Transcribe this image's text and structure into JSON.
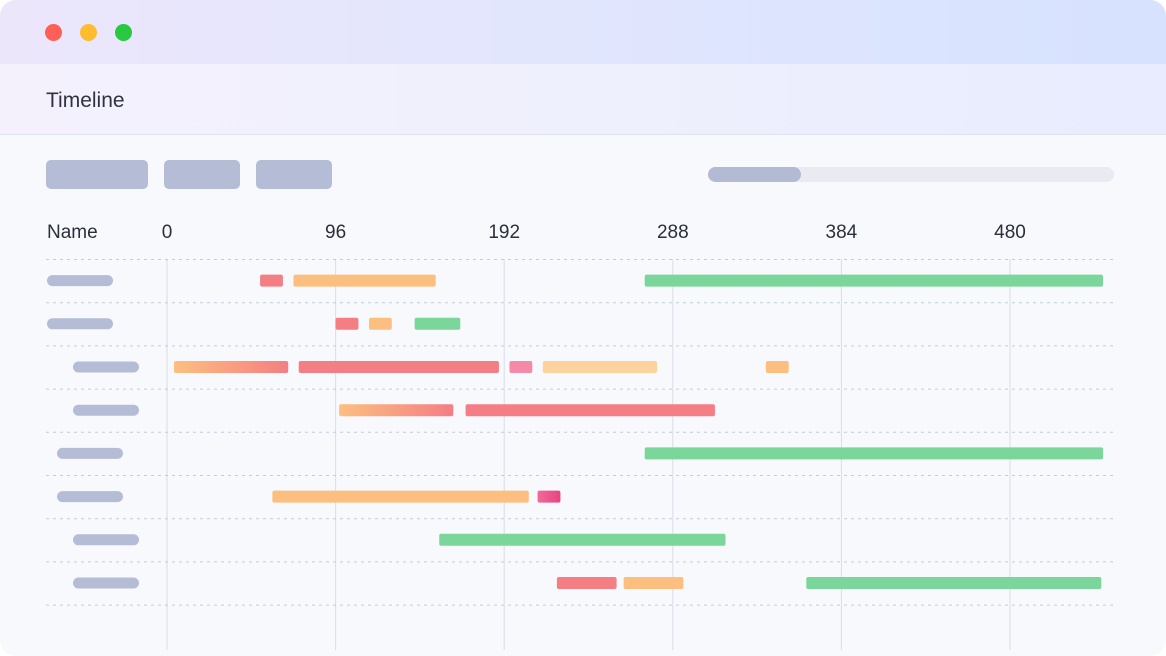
{
  "window": {
    "title": "Timeline",
    "colors": {
      "close": "#fe5f57",
      "minimize": "#febc2e",
      "maximize": "#28c840"
    }
  },
  "toolbar": {
    "buttons": [
      {
        "name": "toolbar-button-1"
      },
      {
        "name": "toolbar-button-2"
      },
      {
        "name": "toolbar-button-3"
      }
    ],
    "progress": 0.23
  },
  "timeline": {
    "name_header": "Name",
    "ticks": [
      0,
      96,
      192,
      288,
      384,
      480
    ],
    "tick_labels": [
      "0",
      "96",
      "192",
      "288",
      "384",
      "480"
    ],
    "x_range": [
      0,
      528
    ],
    "colors": {
      "red": "#f47e84",
      "orange": "#fdbf7f",
      "green": "#7ad69a",
      "peach": "#fcd39c",
      "pink": "#f58aa8",
      "magenta": "#ec4e8a"
    },
    "rows": [
      {
        "indent": 0,
        "bars": [
          {
            "start": 53,
            "end": 66,
            "color": "red"
          },
          {
            "start": 72,
            "end": 153,
            "color": "orange"
          },
          {
            "start": 272,
            "end": 533,
            "color": "green"
          }
        ]
      },
      {
        "indent": 0,
        "bars": [
          {
            "start": 96,
            "end": 109,
            "color": "red"
          },
          {
            "start": 115,
            "end": 128,
            "color": "orange"
          },
          {
            "start": 141,
            "end": 167,
            "color": "green"
          }
        ]
      },
      {
        "indent": 2,
        "bars": [
          {
            "start": 4,
            "end": 69,
            "color": "orange-red"
          },
          {
            "start": 75,
            "end": 189,
            "color": "red"
          },
          {
            "start": 195,
            "end": 208,
            "color": "pink"
          },
          {
            "start": 214,
            "end": 279,
            "color": "peach"
          },
          {
            "start": 341,
            "end": 354,
            "color": "orange"
          }
        ]
      },
      {
        "indent": 2,
        "bars": [
          {
            "start": 98,
            "end": 163,
            "color": "orange-red"
          },
          {
            "start": 170,
            "end": 312,
            "color": "red"
          }
        ]
      },
      {
        "indent": 1,
        "bars": [
          {
            "start": 272,
            "end": 533,
            "color": "green"
          }
        ]
      },
      {
        "indent": 1,
        "bars": [
          {
            "start": 60,
            "end": 206,
            "color": "orange"
          },
          {
            "start": 211,
            "end": 224,
            "color": "pink-magenta"
          }
        ]
      },
      {
        "indent": 2,
        "bars": [
          {
            "start": 155,
            "end": 318,
            "color": "green"
          }
        ]
      },
      {
        "indent": 2,
        "bars": [
          {
            "start": 222,
            "end": 256,
            "color": "red"
          },
          {
            "start": 260,
            "end": 294,
            "color": "orange"
          },
          {
            "start": 364,
            "end": 532,
            "color": "green"
          }
        ]
      }
    ]
  }
}
